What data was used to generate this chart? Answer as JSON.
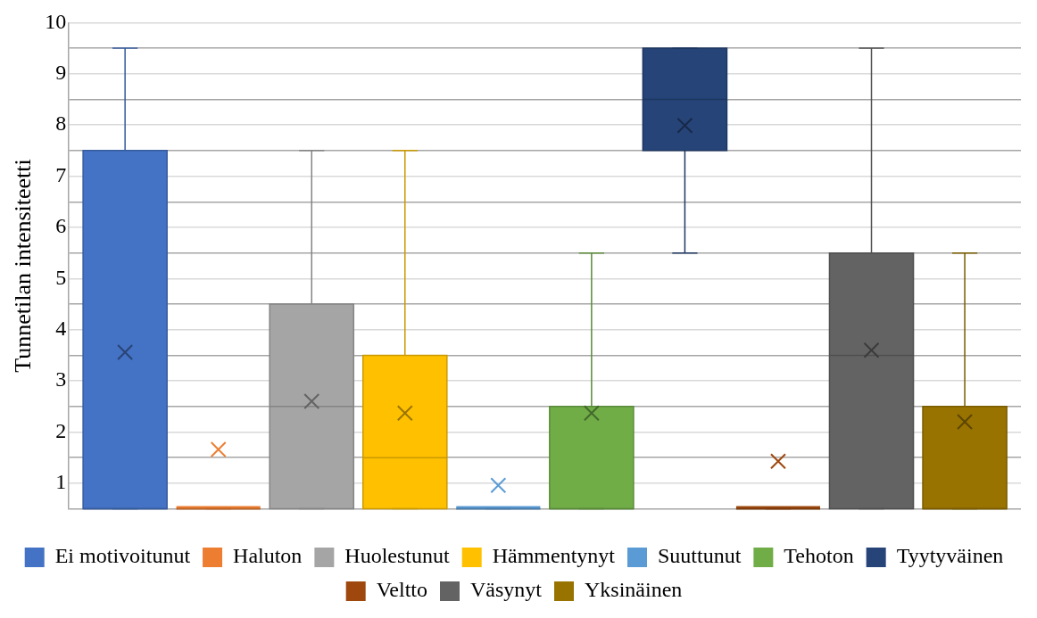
{
  "chart_data": {
    "type": "box",
    "ylabel": "Tunnetilan intensiteetti",
    "categories": [
      null
    ],
    "ylim": [
      0.5,
      10
    ],
    "yticks": [
      {
        "value": 0.5,
        "label": null
      },
      1,
      {
        "value": 1.5,
        "label": null
      },
      2,
      {
        "value": 2.5,
        "label": null
      },
      3,
      {
        "value": 3.5,
        "label": null
      },
      4,
      {
        "value": 4.5,
        "label": null
      },
      5,
      {
        "value": 5.5,
        "label": null
      },
      6,
      {
        "value": 6.5,
        "label": null
      },
      7,
      {
        "value": 7.5,
        "label": null
      },
      8,
      {
        "value": 8.5,
        "label": null
      },
      9,
      {
        "value": 9.5,
        "label": null
      },
      10
    ],
    "grid": "y",
    "legend": "bottom",
    "series": [
      {
        "name": "Ei motivoitunut",
        "color": "#4472c4",
        "boxes": [
          {
            "low": 0.5,
            "q1": 0.5,
            "median": 0.5,
            "q3": 7.5,
            "high": 9.5,
            "mean": 3.56
          }
        ]
      },
      {
        "name": "Haluton",
        "color": "#ed7d31",
        "boxes": [
          {
            "low": 0.5,
            "q1": 0.5,
            "median": 0.5,
            "q3": 0.5,
            "high": 0.5,
            "mean": 1.66
          }
        ]
      },
      {
        "name": "Huolestunut",
        "color": "#a5a5a5",
        "boxes": [
          {
            "low": 0.5,
            "q1": 0.5,
            "median": 2.5,
            "q3": 4.5,
            "high": 7.5,
            "mean": 2.6
          }
        ]
      },
      {
        "name": "Hämmentynyt",
        "color": "#ffc000",
        "boxes": [
          {
            "low": 0.5,
            "q1": 0.5,
            "median": 1.5,
            "q3": 3.5,
            "high": 7.5,
            "mean": 2.37
          }
        ]
      },
      {
        "name": "Suuttunut",
        "color": "#5b9bd5",
        "boxes": [
          {
            "low": 0.5,
            "q1": 0.5,
            "median": 0.5,
            "q3": 0.5,
            "high": 0.5,
            "mean": 0.96
          }
        ]
      },
      {
        "name": "Tehoton",
        "color": "#70ad47",
        "boxes": [
          {
            "low": 0.5,
            "q1": 0.5,
            "median": 0.5,
            "q3": 2.5,
            "high": 5.5,
            "mean": 2.37
          }
        ]
      },
      {
        "name": "Tyytyväinen",
        "color": "#264478",
        "boxes": [
          {
            "low": 5.5,
            "q1": 7.5,
            "median": 8.5,
            "q3": 9.5,
            "high": 9.5,
            "mean": 7.99
          }
        ]
      },
      {
        "name": "Veltto",
        "color": "#9e480e",
        "boxes": [
          {
            "low": 0.5,
            "q1": 0.5,
            "median": 0.5,
            "q3": 0.5,
            "high": 0.5,
            "mean": 1.43
          }
        ]
      },
      {
        "name": "Väsynyt",
        "color": "#636363",
        "boxes": [
          {
            "low": 0.5,
            "q1": 0.5,
            "median": 3.5,
            "q3": 5.5,
            "high": 9.5,
            "mean": 3.6
          }
        ]
      },
      {
        "name": "Yksinäinen",
        "color": "#997300",
        "boxes": [
          {
            "low": 0.5,
            "q1": 0.5,
            "median": 0.5,
            "q3": 2.5,
            "high": 5.5,
            "mean": 2.2
          }
        ]
      }
    ]
  }
}
